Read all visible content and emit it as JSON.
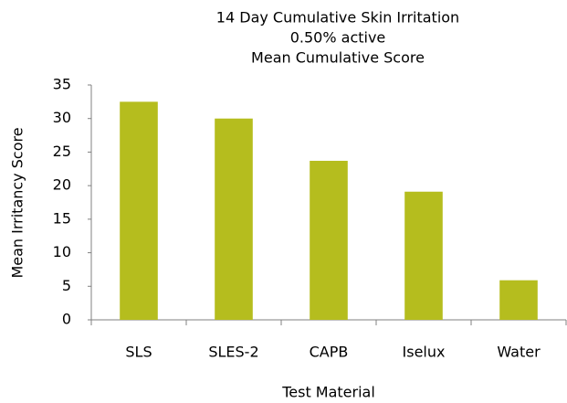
{
  "chart_data": {
    "type": "bar",
    "title": [
      "14 Day Cumulative Skin Irritation",
      "0.50% active",
      "Mean Cumulative Score"
    ],
    "x_label": "Test Material",
    "y_label": "Mean Irritancy Score",
    "categories": [
      "SLS",
      "SLES-2",
      "CAPB",
      "Iselux",
      "Water"
    ],
    "values": [
      32.5,
      30,
      23.7,
      19.1,
      5.9
    ],
    "color": "#b5bd1e",
    "ylim": [
      0,
      35
    ],
    "yticks": [
      0,
      5,
      10,
      15,
      20,
      25,
      30,
      35
    ],
    "grid": false
  }
}
